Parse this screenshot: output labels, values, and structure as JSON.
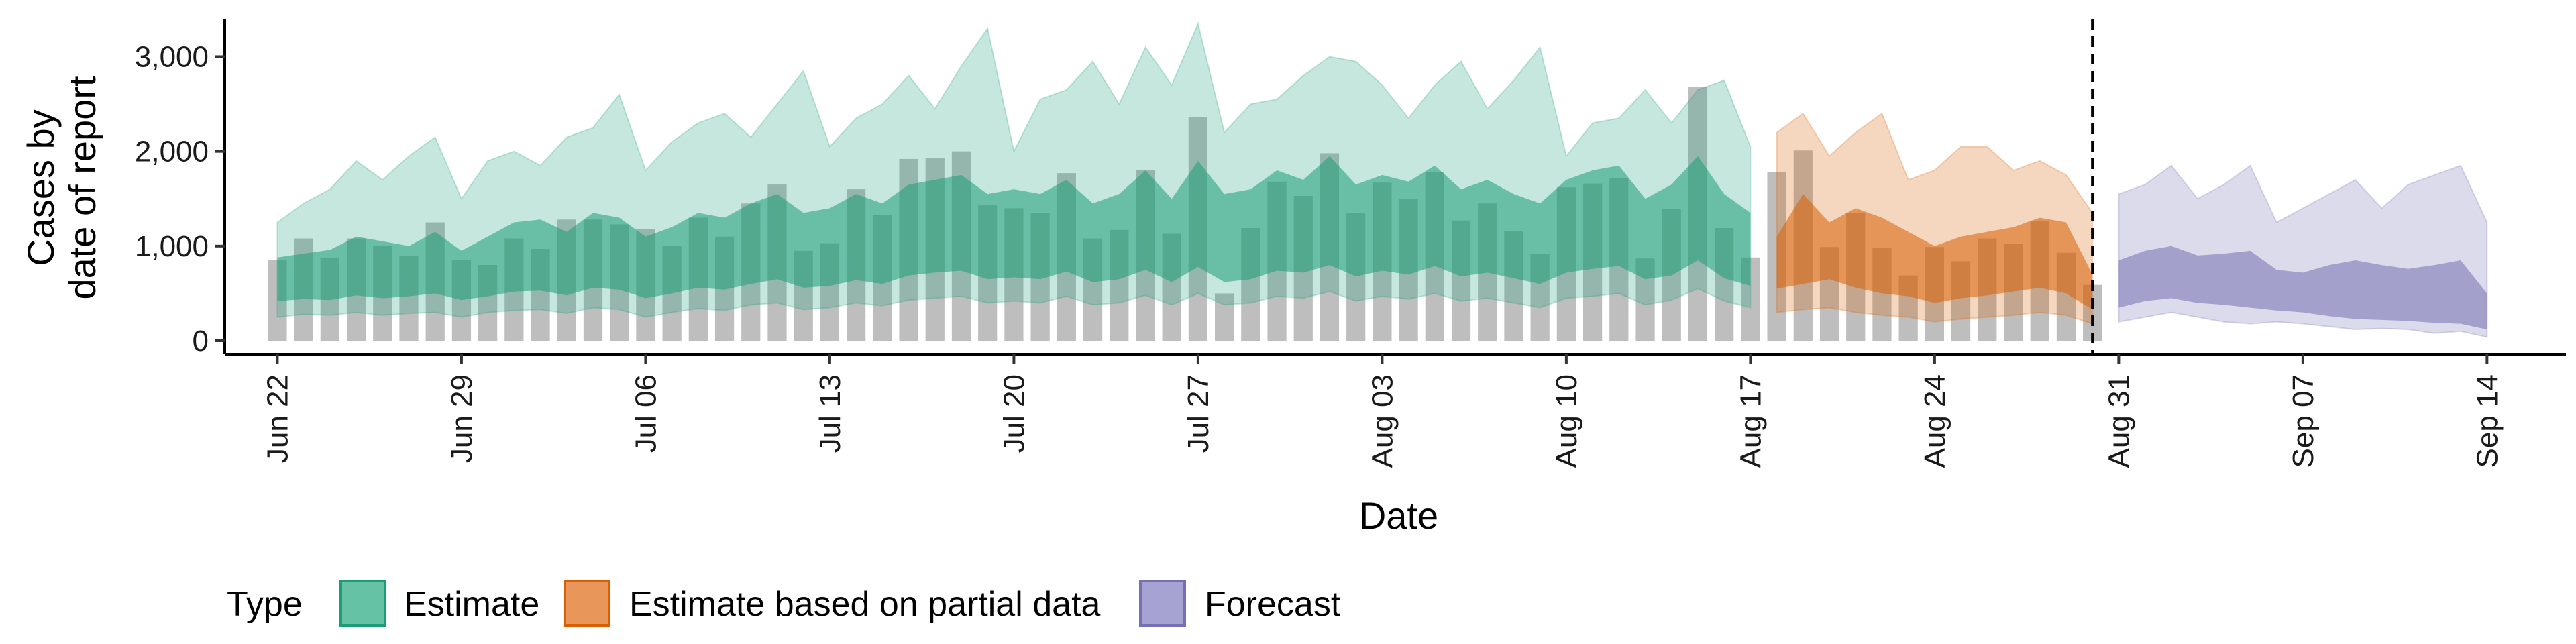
{
  "chart_data": {
    "type": "area",
    "xlabel": "Date",
    "ylabel": [
      "Cases by",
      "date of report"
    ],
    "ylim": [
      0,
      3400
    ],
    "y_ticks": [
      0,
      1000,
      2000,
      3000
    ],
    "y_tick_labels": [
      "0",
      "1,000",
      "2,000",
      "3,000"
    ],
    "x_start": "2020-06-22",
    "x_ticks": [
      0,
      7,
      14,
      21,
      28,
      35,
      42,
      49,
      56,
      63,
      70,
      77,
      84
    ],
    "x_tick_labels": [
      "Jun 22",
      "Jun 29",
      "Jul 06",
      "Jul 13",
      "Jul 20",
      "Jul 27",
      "Aug 03",
      "Aug 10",
      "Aug 17",
      "Aug 24",
      "Aug 31",
      "Sep 07",
      "Sep 14"
    ],
    "xlim": [
      -2,
      87
    ],
    "vline_day": 69,
    "legend": {
      "title": "Type",
      "position": "bottom",
      "entries": [
        {
          "label": "Estimate",
          "fill": "#66c2a5",
          "stroke": "#1b9e77"
        },
        {
          "label": "Estimate based on partial data",
          "fill": "#e9965a",
          "stroke": "#d95f02"
        },
        {
          "label": "Forecast",
          "fill": "#a6a3d2",
          "stroke": "#7570b3"
        }
      ]
    },
    "bar_color": "#b3b3b3",
    "observed": {
      "days": [
        0,
        1,
        2,
        3,
        4,
        5,
        6,
        7,
        8,
        9,
        10,
        11,
        12,
        13,
        14,
        15,
        16,
        17,
        18,
        19,
        20,
        21,
        22,
        23,
        24,
        25,
        26,
        27,
        28,
        29,
        30,
        31,
        32,
        33,
        34,
        35,
        36,
        37,
        38,
        39,
        40,
        41,
        42,
        43,
        44,
        45,
        46,
        47,
        48,
        49,
        50,
        51,
        52,
        53,
        54,
        55,
        56,
        57,
        58,
        59,
        60,
        61,
        62,
        63,
        64,
        65,
        66,
        67,
        68,
        69
      ],
      "values": [
        850,
        1080,
        880,
        1080,
        1000,
        900,
        1250,
        850,
        800,
        1080,
        970,
        1280,
        1280,
        1230,
        1180,
        1000,
        1300,
        1100,
        1450,
        1650,
        950,
        1030,
        1600,
        1330,
        1920,
        1930,
        2000,
        1430,
        1400,
        1350,
        1770,
        1080,
        1170,
        1800,
        1130,
        2360,
        500,
        1190,
        1680,
        1530,
        1980,
        1350,
        1670,
        1500,
        1780,
        1270,
        1450,
        1160,
        920,
        1620,
        1660,
        1720,
        870,
        1390,
        2680,
        1190,
        880,
        1780,
        2010,
        990,
        1350,
        980,
        690,
        990,
        840,
        1080,
        1020,
        1260,
        930,
        590
      ]
    },
    "series": [
      {
        "name": "Estimate",
        "color": "#1b9e77",
        "days": [
          0,
          1,
          2,
          3,
          4,
          5,
          6,
          7,
          8,
          9,
          10,
          11,
          12,
          13,
          14,
          15,
          16,
          17,
          18,
          19,
          20,
          21,
          22,
          23,
          24,
          25,
          26,
          27,
          28,
          29,
          30,
          31,
          32,
          33,
          34,
          35,
          36,
          37,
          38,
          39,
          40,
          41,
          42,
          43,
          44,
          45,
          46,
          47,
          48,
          49,
          50,
          51,
          52,
          53,
          54,
          55,
          56
        ],
        "outer_lower": [
          250,
          280,
          270,
          300,
          270,
          290,
          300,
          250,
          300,
          320,
          330,
          290,
          350,
          330,
          250,
          300,
          340,
          320,
          380,
          400,
          330,
          350,
          400,
          370,
          430,
          450,
          470,
          400,
          420,
          400,
          470,
          380,
          400,
          480,
          380,
          500,
          380,
          400,
          470,
          450,
          520,
          420,
          470,
          440,
          500,
          420,
          450,
          400,
          350,
          450,
          470,
          500,
          380,
          430,
          550,
          420,
          350
        ],
        "inner_lower": [
          420,
          440,
          430,
          480,
          450,
          470,
          500,
          430,
          470,
          520,
          530,
          480,
          560,
          540,
          450,
          500,
          560,
          540,
          600,
          650,
          560,
          580,
          640,
          600,
          690,
          720,
          740,
          650,
          670,
          650,
          730,
          620,
          650,
          750,
          620,
          780,
          620,
          650,
          740,
          720,
          800,
          680,
          740,
          700,
          790,
          680,
          720,
          660,
          600,
          720,
          760,
          790,
          650,
          690,
          850,
          660,
          580
        ],
        "inner_upper": [
          880,
          920,
          960,
          1100,
          1050,
          1000,
          1150,
          950,
          1100,
          1250,
          1280,
          1150,
          1350,
          1300,
          1100,
          1200,
          1350,
          1300,
          1450,
          1550,
          1350,
          1400,
          1550,
          1450,
          1650,
          1700,
          1750,
          1550,
          1600,
          1550,
          1700,
          1450,
          1550,
          1800,
          1500,
          1900,
          1550,
          1600,
          1800,
          1700,
          1950,
          1650,
          1750,
          1680,
          1850,
          1600,
          1700,
          1550,
          1450,
          1700,
          1800,
          1850,
          1500,
          1650,
          1950,
          1550,
          1350
        ],
        "outer_upper": [
          1250,
          1450,
          1600,
          1900,
          1700,
          1950,
          2150,
          1500,
          1900,
          2000,
          1850,
          2150,
          2250,
          2600,
          1800,
          2100,
          2300,
          2400,
          2150,
          2500,
          2850,
          2050,
          2350,
          2500,
          2800,
          2450,
          2900,
          3300,
          2000,
          2550,
          2650,
          2950,
          2500,
          3100,
          2700,
          3350,
          2200,
          2500,
          2550,
          2800,
          3000,
          2950,
          2700,
          2350,
          2700,
          2950,
          2450,
          2750,
          3100,
          1950,
          2300,
          2350,
          2650,
          2300,
          2650,
          2750,
          2050
        ]
      },
      {
        "name": "Estimate based on partial data",
        "color": "#d95f02",
        "days": [
          57,
          58,
          59,
          60,
          61,
          62,
          63,
          64,
          65,
          66,
          67,
          68,
          69
        ],
        "outer_lower": [
          300,
          330,
          350,
          300,
          270,
          250,
          200,
          230,
          250,
          270,
          300,
          270,
          180
        ],
        "inner_lower": [
          550,
          600,
          650,
          560,
          500,
          470,
          400,
          450,
          480,
          520,
          560,
          500,
          330
        ],
        "inner_upper": [
          1100,
          1550,
          1250,
          1400,
          1300,
          1150,
          1000,
          1100,
          1150,
          1200,
          1300,
          1250,
          700
        ],
        "outer_upper": [
          2200,
          2400,
          1950,
          2200,
          2400,
          1700,
          1800,
          2050,
          2050,
          1800,
          1900,
          1750,
          1350
        ]
      },
      {
        "name": "Forecast",
        "color": "#7570b3",
        "days": [
          70,
          71,
          72,
          73,
          74,
          75,
          76,
          77,
          78,
          79,
          80,
          81,
          82,
          83,
          84
        ],
        "outer_lower": [
          200,
          250,
          300,
          250,
          200,
          180,
          200,
          180,
          150,
          120,
          130,
          120,
          80,
          100,
          40
        ],
        "inner_lower": [
          350,
          420,
          450,
          400,
          380,
          350,
          320,
          300,
          260,
          230,
          220,
          210,
          190,
          180,
          120
        ],
        "inner_upper": [
          850,
          950,
          1000,
          900,
          920,
          950,
          750,
          720,
          800,
          850,
          800,
          760,
          800,
          850,
          500
        ],
        "outer_upper": [
          1550,
          1650,
          1850,
          1500,
          1650,
          1850,
          1250,
          1400,
          1550,
          1700,
          1400,
          1650,
          1750,
          1850,
          1250
        ]
      }
    ]
  }
}
